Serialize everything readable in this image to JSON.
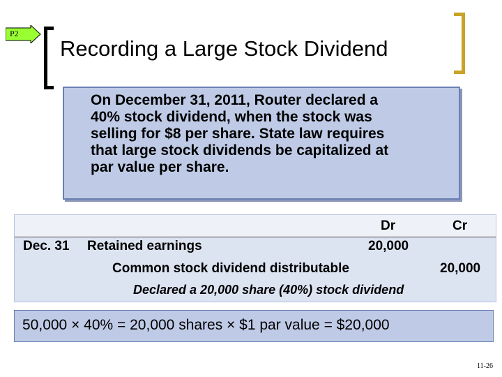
{
  "tag": {
    "label": "P2",
    "color": "#99ff33"
  },
  "title": "Recording a Large Stock Dividend",
  "info": {
    "line1": "On December 31, 2011, Router declared a",
    "line2": "40% stock dividend, when the stock was",
    "line3": "selling for $8 per share.  State law requires",
    "line4": "that large stock dividends be capitalized at",
    "line5": "par value per share."
  },
  "journal": {
    "dr_header": "Dr",
    "cr_header": "Cr",
    "date": "Dec. 31",
    "debit_account": "Retained earnings",
    "debit_amount": "20,000",
    "credit_account": "Common stock dividend distributable",
    "credit_amount": "20,000",
    "explanation": "Declared a 20,000 share (40%) stock dividend"
  },
  "calculation": "50,000 × 40%  = 20,000 shares × $1 par value  = $20,000",
  "slide_number": "11-26"
}
